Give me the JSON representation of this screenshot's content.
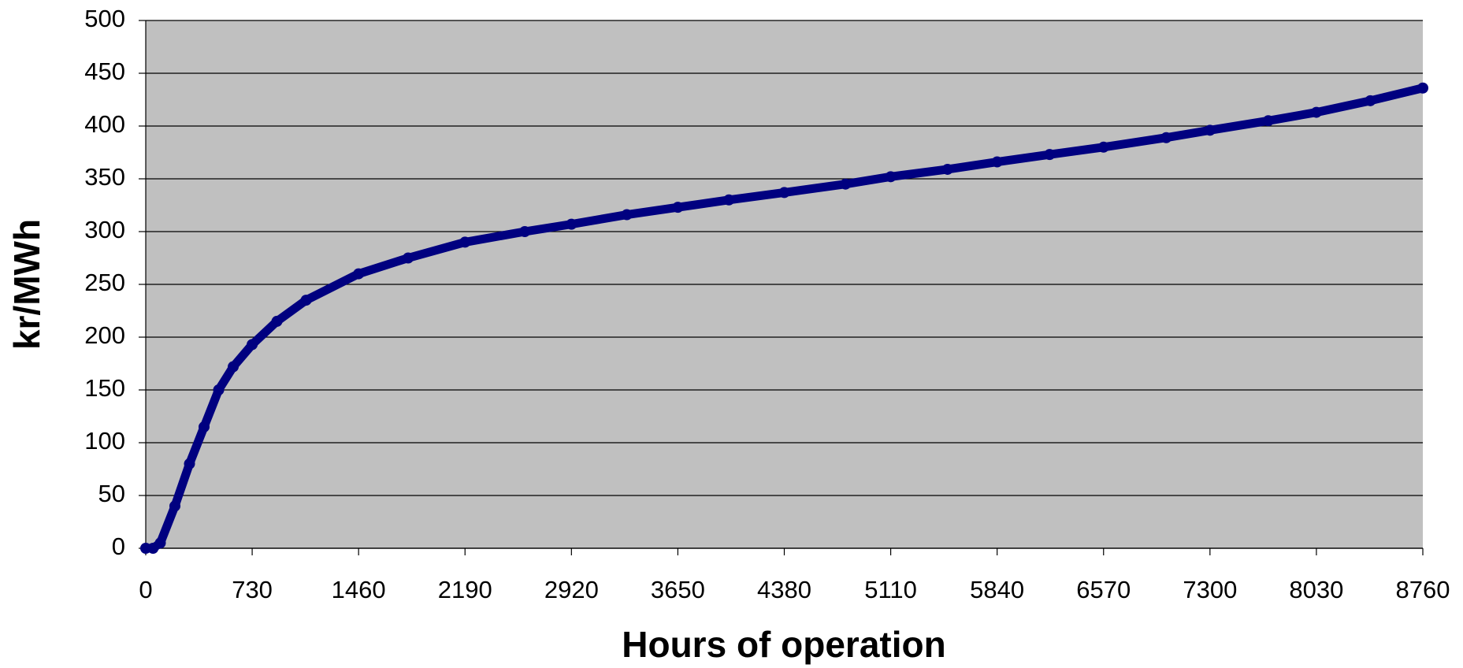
{
  "chart_data": {
    "type": "line",
    "x_label": "Hours of operation",
    "y_label": "kr/MWh",
    "series": [
      {
        "name": "kr/MWh",
        "color": "#000080",
        "x": [
          0,
          50,
          100,
          200,
          300,
          400,
          500,
          600,
          730,
          900,
          1100,
          1460,
          1800,
          2190,
          2600,
          2920,
          3300,
          3650,
          4000,
          4380,
          4800,
          5110,
          5500,
          5840,
          6200,
          6570,
          7000,
          7300,
          7700,
          8030,
          8400,
          8760
        ],
        "values": [
          0,
          0,
          5,
          40,
          80,
          115,
          150,
          172,
          193,
          215,
          235,
          260,
          275,
          290,
          300,
          307,
          316,
          323,
          330,
          337,
          345,
          352,
          359,
          366,
          373,
          380,
          389,
          396,
          405,
          413,
          424,
          436
        ]
      }
    ],
    "xlim": [
      0,
      8760
    ],
    "xticks": [
      0,
      730,
      1460,
      2190,
      2920,
      3650,
      4380,
      5110,
      5840,
      6570,
      7300,
      8030,
      8760
    ],
    "ylim": [
      0,
      500
    ],
    "yticks": [
      0,
      50,
      100,
      150,
      200,
      250,
      300,
      350,
      400,
      450,
      500
    ],
    "grid": true
  }
}
